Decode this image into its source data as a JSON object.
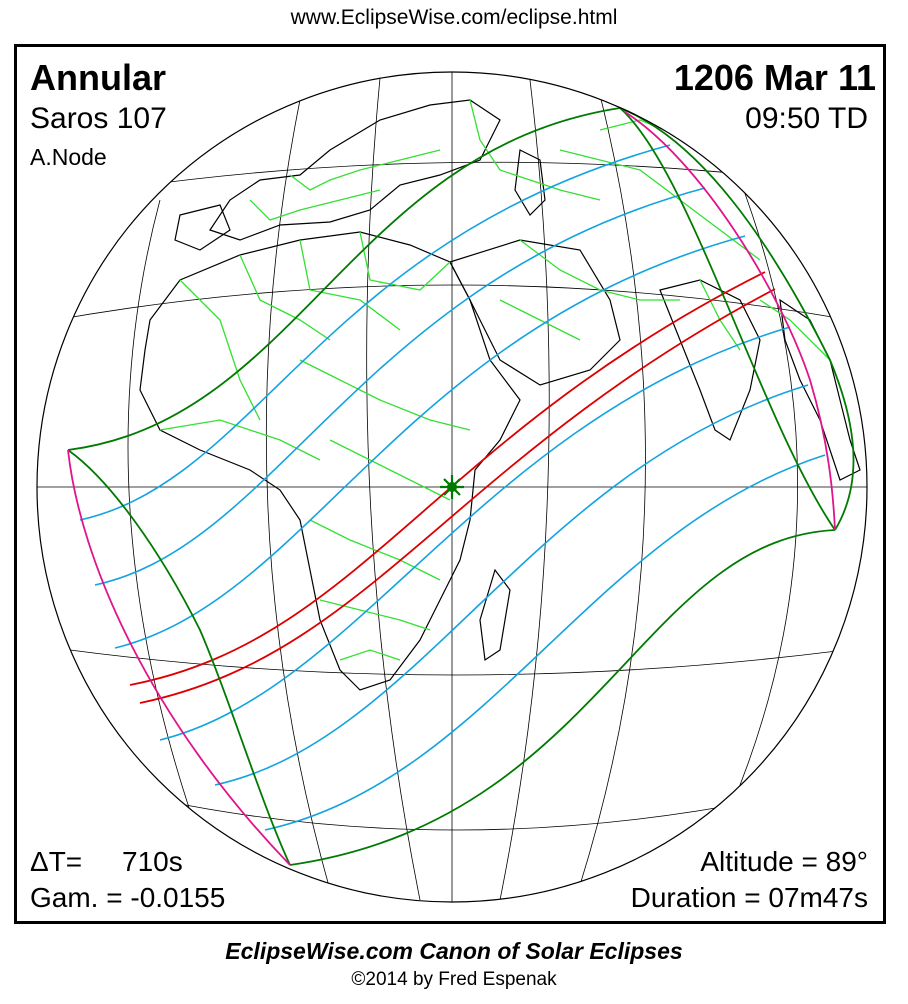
{
  "header": {
    "url": "www.EclipseWise.com/eclipse.html"
  },
  "eclipse": {
    "type": "Annular",
    "date": "1206 Mar 11",
    "saros": "Saros 107",
    "time": "09:50 TD",
    "node": "A.Node",
    "delta_t_label": "ΔT=",
    "delta_t_value": "710s",
    "gamma": "Gam. = -0.0155",
    "altitude": "Altitude = 89°",
    "duration": "Duration = 07m47s"
  },
  "map_legend": {
    "colors": {
      "globe_outline": "#000000",
      "graticule": "#000000",
      "coastline": "#000000",
      "borders": "#33e033",
      "penumbral_limits": "#007a00",
      "central_path": "#dd0000",
      "time_contours": "#12a3e0",
      "rise_set_curves": "#e0148c",
      "greatest_eclipse_marker": "#007a00"
    },
    "icons": [
      "globe-icon",
      "greatest-eclipse-star-icon"
    ]
  },
  "footer": {
    "title": "EclipseWise.com Canon of Solar Eclipses",
    "copyright": "©2014 by Fred Espenak"
  }
}
